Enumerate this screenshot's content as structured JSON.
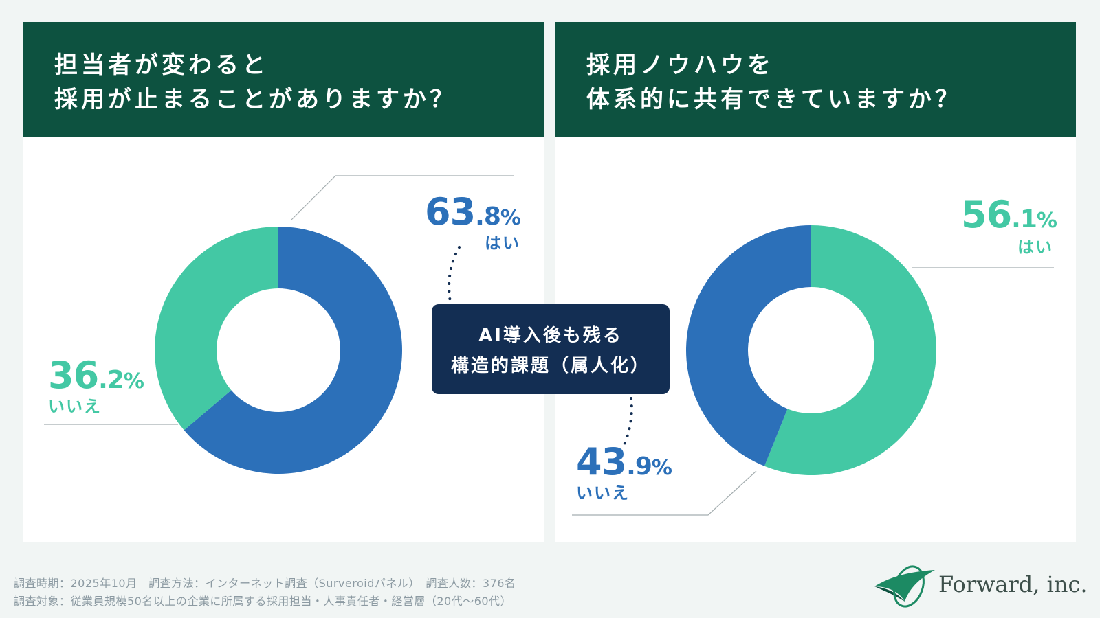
{
  "chart_data": [
    {
      "type": "pie",
      "title": "担当者が変わると\n採用が止まることがありますか？",
      "title_lines": [
        "担当者が変わると",
        "採用が止まることがありますか？"
      ],
      "categories": [
        "はい",
        "いいえ"
      ],
      "values": [
        63.8,
        36.2
      ],
      "colors": [
        "#2c70b9",
        "#43c8a4"
      ],
      "labels": [
        {
          "int": "63",
          "dec": ".8",
          "unit": "%",
          "text": "はい"
        },
        {
          "int": "36",
          "dec": ".2",
          "unit": "%",
          "text": "いいえ"
        }
      ]
    },
    {
      "type": "pie",
      "title": "採用ノウハウを\n体系的に共有できていますか？",
      "title_lines": [
        "採用ノウハウを",
        "体系的に共有できていますか？"
      ],
      "categories": [
        "はい",
        "いいえ"
      ],
      "values": [
        56.1,
        43.9
      ],
      "colors": [
        "#43c8a4",
        "#2c70b9"
      ],
      "labels": [
        {
          "int": "56",
          "dec": ".1",
          "unit": "%",
          "text": "はい"
        },
        {
          "int": "43",
          "dec": ".9",
          "unit": "%",
          "text": "いいえ"
        }
      ]
    }
  ],
  "center_box": {
    "lines": [
      "AI導入後も残る",
      "構造的課題（属人化）"
    ]
  },
  "footer": {
    "line1": "調査時期：2025年10月　調査方法：インターネット調査（Surveroidパネル）　調査人数：376名",
    "line2": "調査対象：従業員規模50名以上の企業に所属する採用担当・人事責任者・経営層（20代〜60代）"
  },
  "logo": {
    "text": "Forward, inc.",
    "icon": "forward-leaf-logo"
  },
  "colors": {
    "header": "#0d5240",
    "blue": "#2c70b9",
    "green": "#43c8a4",
    "navy": "#132e53",
    "background": "#f1f5f4"
  }
}
